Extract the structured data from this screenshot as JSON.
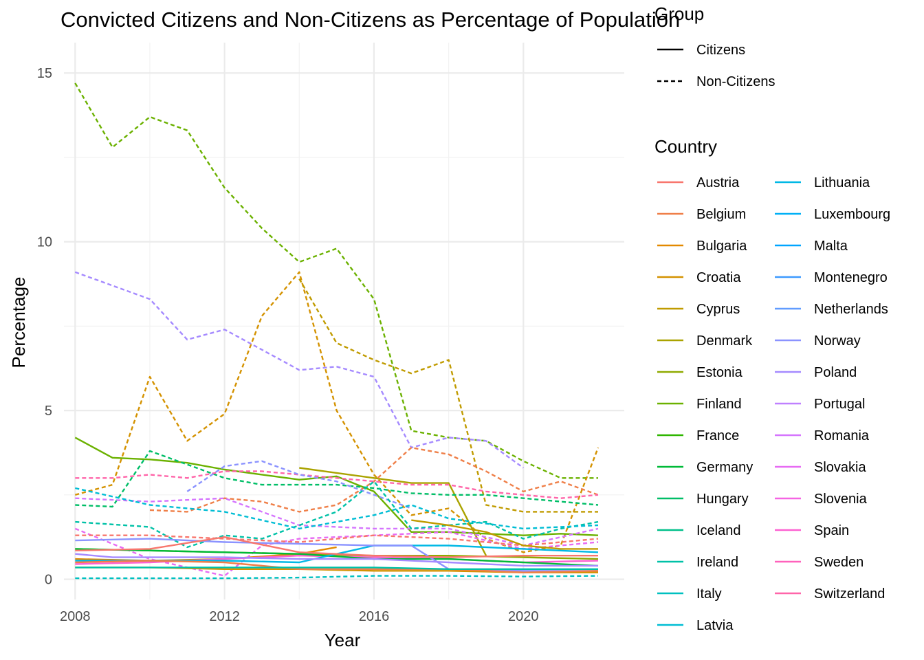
{
  "chart_data": {
    "type": "line",
    "title": "Convicted Citizens and Non-Citizens as Percentage of Population",
    "xlabel": "Year",
    "ylabel": "Percentage",
    "xlim": [
      2007.7,
      2022.7
    ],
    "ylim": [
      -0.6,
      15.9
    ],
    "x_ticks": [
      2008,
      2012,
      2016,
      2020
    ],
    "y_ticks": [
      0,
      5,
      10,
      15
    ],
    "grid": true,
    "legend_position": "right",
    "legend_group_title": "Group",
    "legend_groups": [
      {
        "name": "Citizens",
        "dash": "solid"
      },
      {
        "name": "Non-Citizens",
        "dash": "dashed"
      }
    ],
    "legend_country_title": "Country",
    "countries": [
      {
        "name": "Austria",
        "color": "#F8766D"
      },
      {
        "name": "Belgium",
        "color": "#EF7F48"
      },
      {
        "name": "Bulgaria",
        "color": "#E38900"
      },
      {
        "name": "Croatia",
        "color": "#D49200"
      },
      {
        "name": "Cyprus",
        "color": "#C09B00"
      },
      {
        "name": "Denmark",
        "color": "#AAA300"
      },
      {
        "name": "Estonia",
        "color": "#8FAA00"
      },
      {
        "name": "Finland",
        "color": "#6BB100"
      },
      {
        "name": "France",
        "color": "#2FB600"
      },
      {
        "name": "Germany",
        "color": "#00BA38"
      },
      {
        "name": "Hungary",
        "color": "#00BE67"
      },
      {
        "name": "Iceland",
        "color": "#00C08A"
      },
      {
        "name": "Ireland",
        "color": "#00C1A7"
      },
      {
        "name": "Italy",
        "color": "#00C0C0"
      },
      {
        "name": "Latvia",
        "color": "#00BDD4"
      },
      {
        "name": "Lithuania",
        "color": "#00B8E5"
      },
      {
        "name": "Luxembourg",
        "color": "#00B0F6"
      },
      {
        "name": "Malta",
        "color": "#00A5FF"
      },
      {
        "name": "Montenegro",
        "color": "#3D9AFF"
      },
      {
        "name": "Netherlands",
        "color": "#619CFF"
      },
      {
        "name": "Norway",
        "color": "#8B93FF"
      },
      {
        "name": "Poland",
        "color": "#A58AFF"
      },
      {
        "name": "Portugal",
        "color": "#BF80FF"
      },
      {
        "name": "Romania",
        "color": "#D575FE"
      },
      {
        "name": "Slovakia",
        "color": "#E76BF3"
      },
      {
        "name": "Slovenia",
        "color": "#F564E3"
      },
      {
        "name": "Spain",
        "color": "#FD61D1"
      },
      {
        "name": "Sweden",
        "color": "#FF62BC"
      },
      {
        "name": "Switzerland",
        "color": "#FF65A9"
      }
    ],
    "series": [
      {
        "country": "Finland",
        "group": "Non-Citizens",
        "x": [
          2008,
          2009,
          2010,
          2011,
          2012,
          2013,
          2014,
          2015,
          2016,
          2017,
          2018,
          2019,
          2020,
          2021,
          2022
        ],
        "y": [
          14.7,
          12.8,
          13.7,
          13.3,
          11.6,
          10.4,
          9.4,
          9.8,
          8.3,
          4.4,
          4.2,
          4.1,
          3.5,
          3.0,
          3.0
        ]
      },
      {
        "country": "Croatia",
        "group": "Non-Citizens",
        "x": [
          2008,
          2009,
          2010,
          2011,
          2012,
          2013,
          2014,
          2015,
          2016,
          2017,
          2018,
          2019,
          2020,
          2021,
          2022
        ],
        "y": [
          2.5,
          2.8,
          6.0,
          4.1,
          4.9,
          7.8,
          9.1,
          5.0,
          3.1,
          1.9,
          2.1,
          1.2,
          0.8,
          1.0,
          3.9
        ]
      },
      {
        "country": "Poland",
        "group": "Non-Citizens",
        "x": [
          2008,
          2010,
          2011,
          2012,
          2013,
          2014,
          2015,
          2016,
          2017,
          2018,
          2019,
          2020
        ],
        "y": [
          9.1,
          8.3,
          7.1,
          7.4,
          6.8,
          6.2,
          6.3,
          6.0,
          3.9,
          4.2,
          4.1,
          3.3
        ]
      },
      {
        "country": "Cyprus",
        "group": "Non-Citizens",
        "x": [
          2014,
          2015,
          2016,
          2017,
          2018,
          2019,
          2020,
          2021,
          2022
        ],
        "y": [
          8.9,
          7.0,
          6.5,
          6.1,
          6.5,
          2.2,
          2.0,
          2.0,
          2.0
        ]
      },
      {
        "country": "Finland",
        "group": "Citizens",
        "x": [
          2008,
          2009,
          2010,
          2011,
          2012,
          2013,
          2014,
          2015,
          2016,
          2017,
          2018,
          2019,
          2020,
          2021,
          2022
        ],
        "y": [
          4.2,
          3.6,
          3.55,
          3.45,
          3.25,
          3.1,
          2.95,
          3.05,
          2.6,
          1.4,
          1.4,
          1.35,
          1.3,
          1.35,
          1.3
        ]
      },
      {
        "country": "Denmark",
        "group": "Citizens",
        "x": [
          2014,
          2015,
          2016,
          2017,
          2018,
          2019
        ],
        "y": [
          3.3,
          3.15,
          3.0,
          2.85,
          2.85,
          0.7
        ]
      },
      {
        "country": "Bulgaria",
        "group": "Citizens",
        "x": [
          2008,
          2010,
          2012,
          2014,
          2015
        ],
        "y": [
          0.6,
          0.55,
          0.6,
          0.75,
          0.95
        ]
      },
      {
        "country": "Belgium",
        "group": "Non-Citizens",
        "x": [
          2010,
          2011,
          2012,
          2013,
          2014,
          2015,
          2016,
          2017,
          2018,
          2019,
          2020,
          2021,
          2022
        ],
        "y": [
          2.05,
          2.0,
          2.4,
          2.3,
          2.0,
          2.2,
          2.9,
          3.9,
          3.7,
          3.2,
          2.6,
          2.9,
          2.5
        ]
      },
      {
        "country": "Hungary",
        "group": "Non-Citizens",
        "x": [
          2008,
          2009,
          2010,
          2011,
          2012,
          2013,
          2014,
          2015,
          2016,
          2017,
          2018,
          2019,
          2020,
          2021,
          2022
        ],
        "y": [
          2.2,
          2.15,
          3.8,
          3.4,
          3.0,
          2.8,
          2.8,
          2.8,
          2.7,
          2.55,
          2.5,
          2.5,
          2.4,
          2.3,
          2.2
        ]
      },
      {
        "country": "Switzerland",
        "group": "Non-Citizens",
        "x": [
          2008,
          2009,
          2010,
          2011,
          2012,
          2013,
          2014,
          2015,
          2016,
          2017,
          2018,
          2019,
          2020,
          2021,
          2022
        ],
        "y": [
          3.0,
          3.0,
          3.1,
          3.0,
          3.2,
          3.2,
          3.1,
          3.0,
          2.9,
          2.8,
          2.8,
          2.6,
          2.5,
          2.4,
          2.5
        ]
      },
      {
        "country": "Norway",
        "group": "Non-Citizens",
        "x": [
          2011,
          2012,
          2013,
          2014,
          2015,
          2016,
          2017
        ],
        "y": [
          2.6,
          3.35,
          3.5,
          3.1,
          2.9,
          2.5,
          2.1
        ]
      },
      {
        "country": "Romania",
        "group": "Non-Citizens",
        "x": [
          2008,
          2010,
          2012,
          2014,
          2016,
          2018,
          2020,
          2022
        ],
        "y": [
          2.4,
          2.3,
          2.4,
          1.6,
          1.5,
          1.5,
          1.0,
          1.5
        ]
      },
      {
        "country": "Ireland",
        "group": "Non-Citizens",
        "x": [
          2008,
          2010,
          2011,
          2012,
          2013,
          2014,
          2015,
          2016,
          2017,
          2018,
          2019,
          2020,
          2021,
          2022
        ],
        "y": [
          1.7,
          1.55,
          0.95,
          1.3,
          1.2,
          1.6,
          2.0,
          2.9,
          1.5,
          1.6,
          1.7,
          1.2,
          1.5,
          1.7
        ]
      },
      {
        "country": "Latvia",
        "group": "Non-Citizens",
        "x": [
          2008,
          2010,
          2012,
          2014,
          2016,
          2017,
          2018,
          2020,
          2022
        ],
        "y": [
          2.7,
          2.2,
          2.0,
          1.5,
          1.9,
          2.2,
          1.8,
          1.5,
          1.6
        ]
      },
      {
        "country": "Slovakia",
        "group": "Non-Citizens",
        "x": [
          2008,
          2010,
          2012,
          2013,
          2014,
          2016,
          2018,
          2020,
          2022
        ],
        "y": [
          1.5,
          0.6,
          0.1,
          1.0,
          1.2,
          1.3,
          1.4,
          0.9,
          1.1
        ]
      },
      {
        "country": "Austria",
        "group": "Non-Citizens",
        "x": [
          2008,
          2010,
          2012,
          2014,
          2016,
          2018,
          2020,
          2022
        ],
        "y": [
          1.3,
          1.3,
          1.2,
          1.1,
          1.3,
          1.2,
          1.0,
          1.2
        ]
      },
      {
        "country": "Italy",
        "group": "Non-Citizens",
        "x": [
          2008,
          2010,
          2012,
          2014,
          2016,
          2018,
          2020,
          2022
        ],
        "y": [
          0.03,
          0.03,
          0.03,
          0.05,
          0.1,
          0.1,
          0.08,
          0.1
        ]
      },
      {
        "country": "Spain",
        "group": "Citizens",
        "x": [
          2008,
          2010,
          2012,
          2014,
          2016,
          2018,
          2020,
          2022
        ],
        "y": [
          0.45,
          0.5,
          0.6,
          0.7,
          0.65,
          0.6,
          0.5,
          0.55
        ]
      },
      {
        "country": "Estonia",
        "group": "Citizens",
        "x": [
          2008,
          2010,
          2012,
          2014,
          2016,
          2018,
          2020,
          2022
        ],
        "y": [
          0.9,
          0.85,
          0.8,
          0.75,
          0.7,
          0.7,
          0.65,
          0.6
        ]
      },
      {
        "country": "Germany",
        "group": "Citizens",
        "x": [
          2008,
          2010,
          2012,
          2014,
          2016,
          2018,
          2020,
          2022
        ],
        "y": [
          0.9,
          0.85,
          0.8,
          0.75,
          0.6,
          0.6,
          0.5,
          0.4
        ]
      },
      {
        "country": "Lithuania",
        "group": "Citizens",
        "x": [
          2008,
          2010,
          2012,
          2014,
          2016,
          2018,
          2020,
          2022
        ],
        "y": [
          0.55,
          0.55,
          0.55,
          0.5,
          1.0,
          1.0,
          0.9,
          0.8
        ]
      },
      {
        "country": "Norway",
        "group": "Citizens",
        "x": [
          2008,
          2010,
          2012,
          2014,
          2016,
          2017,
          2018,
          2020,
          2022
        ],
        "y": [
          1.15,
          1.2,
          1.1,
          1.05,
          1.0,
          1.0,
          0.3,
          0.25,
          0.25
        ]
      },
      {
        "country": "Poland",
        "group": "Citizens",
        "x": [
          2008,
          2009,
          2010,
          2012,
          2014,
          2016,
          2018,
          2020,
          2022
        ],
        "y": [
          0.75,
          0.65,
          0.65,
          0.65,
          0.6,
          0.6,
          0.5,
          0.4,
          0.4
        ]
      },
      {
        "country": "Croatia",
        "group": "Citizens",
        "x": [
          2008,
          2010,
          2012,
          2014,
          2016,
          2018,
          2020,
          2022
        ],
        "y": [
          0.35,
          0.35,
          0.3,
          0.3,
          0.25,
          0.25,
          0.2,
          0.2
        ]
      },
      {
        "country": "Belgium",
        "group": "Citizens",
        "x": [
          2008,
          2010,
          2012,
          2014,
          2016,
          2018,
          2020,
          2022
        ],
        "y": [
          0.5,
          0.55,
          0.5,
          0.3,
          0.3,
          0.3,
          0.2,
          0.25
        ]
      },
      {
        "country": "Ireland",
        "group": "Citizens",
        "x": [
          2008,
          2010,
          2012,
          2014,
          2016,
          2018,
          2020,
          2022
        ],
        "y": [
          0.35,
          0.35,
          0.35,
          0.35,
          0.35,
          0.3,
          0.3,
          0.3
        ]
      },
      {
        "country": "Cyprus",
        "group": "Citizens",
        "x": [
          2017,
          2018,
          2019,
          2020,
          2021,
          2022
        ],
        "y": [
          1.75,
          1.6,
          1.4,
          1.0,
          0.9,
          0.9
        ]
      },
      {
        "country": "Austria",
        "group": "Citizens",
        "x": [
          2008,
          2010,
          2012,
          2014,
          2016,
          2018,
          2020,
          2022
        ],
        "y": [
          0.85,
          0.9,
          1.25,
          0.8,
          0.7,
          0.65,
          0.7,
          0.7
        ]
      }
    ]
  }
}
